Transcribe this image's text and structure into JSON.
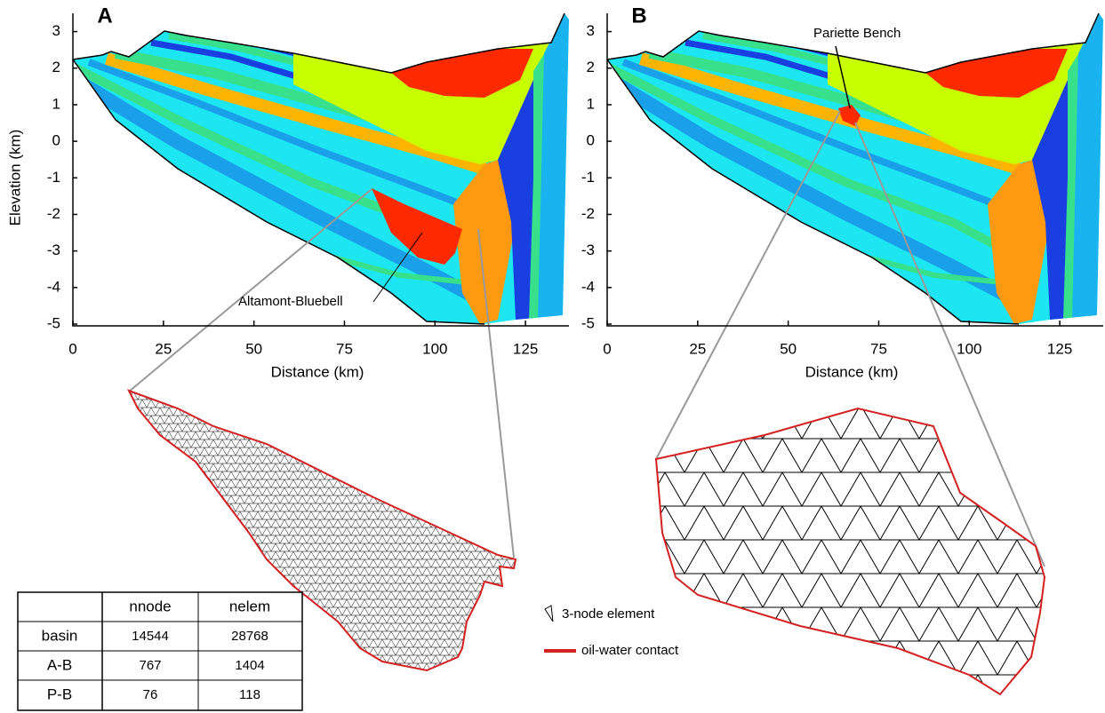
{
  "panels": [
    {
      "letter": "A",
      "y_label": "Elevation (km)",
      "x_label": "Distance (km)",
      "xlim": [
        0,
        137
      ],
      "ylim": [
        -5,
        3.5
      ],
      "xticks": [
        0,
        25,
        50,
        75,
        100,
        125
      ],
      "yticks": [
        3,
        2,
        1,
        0,
        -1,
        -2,
        -3,
        -4,
        -5
      ],
      "annotation": "Altamont-Bluebell"
    },
    {
      "letter": "B",
      "x_label": "Distance (km)",
      "xlim": [
        0,
        137
      ],
      "ylim": [
        -5,
        3.5
      ],
      "xticks": [
        0,
        25,
        50,
        75,
        100,
        125
      ],
      "yticks": [
        3,
        2,
        1,
        0,
        -1,
        -2,
        -3,
        -4,
        -5
      ],
      "annotation": "Pariette Bench"
    }
  ],
  "legend": {
    "items": [
      "3-node element",
      "oil-water contact"
    ]
  },
  "table": {
    "header": [
      "nnode",
      "nelem"
    ],
    "rows": [
      [
        "basin",
        14544,
        28768
      ],
      [
        "A-B",
        767,
        1404
      ],
      [
        "P-B",
        76,
        118
      ]
    ]
  }
}
